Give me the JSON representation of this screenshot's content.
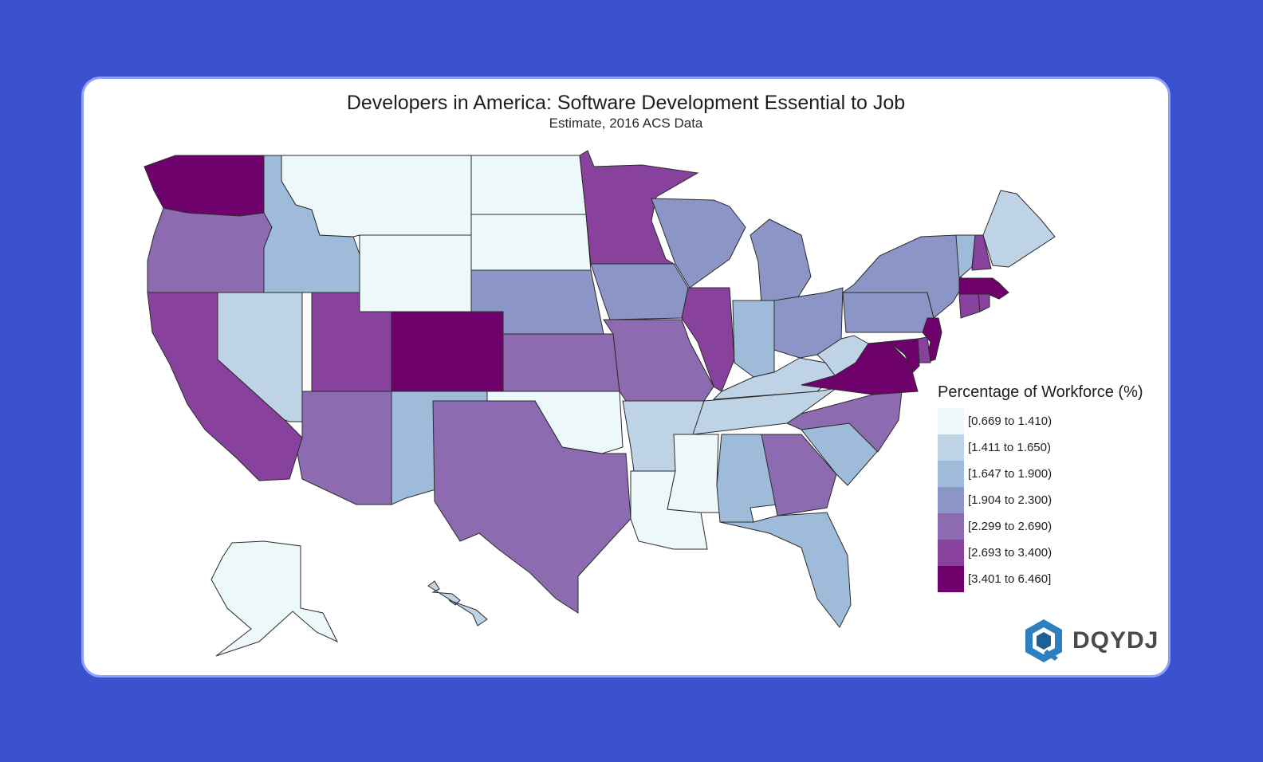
{
  "title": "Developers in America: Software Development Essential to Job",
  "subtitle": "Estimate, 2016 ACS Data",
  "legend": {
    "title": "Percentage of Workforce (%)",
    "items": [
      {
        "label": "[0.669 to 1.410)",
        "color": "#edf8fb"
      },
      {
        "label": "[1.411 to 1.650)",
        "color": "#bfd3e6"
      },
      {
        "label": "[1.647 to 1.900)",
        "color": "#9ebcda"
      },
      {
        "label": "[1.904 to 2.300)",
        "color": "#8c96c6"
      },
      {
        "label": "[2.299 to 2.690)",
        "color": "#8c6bb1"
      },
      {
        "label": "[2.693 to 3.400)",
        "color": "#88419d"
      },
      {
        "label": "[3.401 to 6.460]",
        "color": "#6e016b"
      }
    ]
  },
  "states": [
    {
      "name": "WA",
      "bin": 6
    },
    {
      "name": "OR",
      "bin": 4
    },
    {
      "name": "CA",
      "bin": 5
    },
    {
      "name": "ID",
      "bin": 2
    },
    {
      "name": "NV",
      "bin": 1
    },
    {
      "name": "MT",
      "bin": 0
    },
    {
      "name": "WY",
      "bin": 0
    },
    {
      "name": "UT",
      "bin": 5
    },
    {
      "name": "AZ",
      "bin": 4
    },
    {
      "name": "CO",
      "bin": 6
    },
    {
      "name": "NM",
      "bin": 2
    },
    {
      "name": "ND",
      "bin": 0
    },
    {
      "name": "SD",
      "bin": 0
    },
    {
      "name": "NE",
      "bin": 3
    },
    {
      "name": "KS",
      "bin": 4
    },
    {
      "name": "OK",
      "bin": 0
    },
    {
      "name": "TX",
      "bin": 4
    },
    {
      "name": "MN",
      "bin": 5
    },
    {
      "name": "IA",
      "bin": 3
    },
    {
      "name": "MO",
      "bin": 4
    },
    {
      "name": "AR",
      "bin": 1
    },
    {
      "name": "LA",
      "bin": 0
    },
    {
      "name": "WI",
      "bin": 3
    },
    {
      "name": "IL",
      "bin": 5
    },
    {
      "name": "MI",
      "bin": 3
    },
    {
      "name": "IN",
      "bin": 2
    },
    {
      "name": "OH",
      "bin": 3
    },
    {
      "name": "KY",
      "bin": 1
    },
    {
      "name": "TN",
      "bin": 1
    },
    {
      "name": "MS",
      "bin": 0
    },
    {
      "name": "AL",
      "bin": 2
    },
    {
      "name": "GA",
      "bin": 4
    },
    {
      "name": "FL",
      "bin": 2
    },
    {
      "name": "SC",
      "bin": 2
    },
    {
      "name": "NC",
      "bin": 4
    },
    {
      "name": "VA",
      "bin": 6
    },
    {
      "name": "WV",
      "bin": 1
    },
    {
      "name": "PA",
      "bin": 3
    },
    {
      "name": "NY",
      "bin": 3
    },
    {
      "name": "VT",
      "bin": 2
    },
    {
      "name": "NH",
      "bin": 5
    },
    {
      "name": "ME",
      "bin": 1
    },
    {
      "name": "MA",
      "bin": 6
    },
    {
      "name": "CT",
      "bin": 5
    },
    {
      "name": "RI",
      "bin": 5
    },
    {
      "name": "NJ",
      "bin": 6
    },
    {
      "name": "DE",
      "bin": 5
    },
    {
      "name": "MD",
      "bin": 6
    },
    {
      "name": "AK",
      "bin": 0
    },
    {
      "name": "HI",
      "bin": 1
    }
  ],
  "logo": {
    "text": "DQYDJ"
  }
}
